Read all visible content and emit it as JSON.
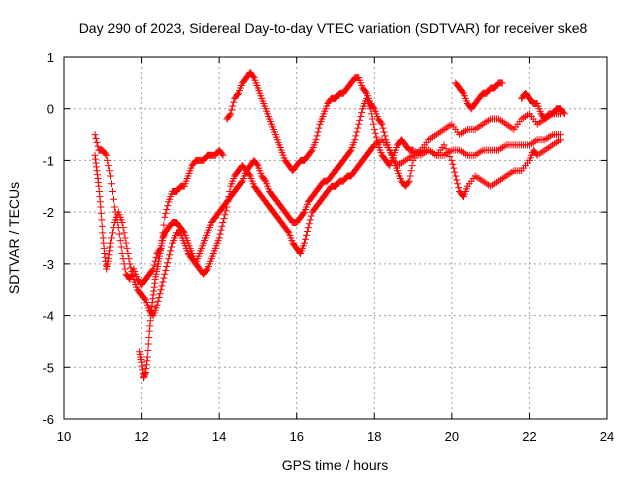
{
  "chart_data": {
    "type": "scatter",
    "title": "Day 290 of 2023, Sidereal Day-to-day VTEC variation (SDTVAR) for receiver ske8",
    "xlabel": "GPS time / hours",
    "ylabel": "SDTVAR / TECUs",
    "xlim": [
      10,
      24
    ],
    "ylim": [
      -6,
      1
    ],
    "xticks": [
      "10",
      "12",
      "14",
      "16",
      "18",
      "20",
      "22",
      "24"
    ],
    "yticks": [
      "1",
      "0",
      "-1",
      "-2",
      "-3",
      "-4",
      "-5",
      "-6"
    ],
    "grid": true,
    "marker": "plus",
    "color": "#ff0000",
    "series": [
      {
        "x": [
          10.8,
          10.9,
          11.0,
          11.1,
          11.2,
          11.3,
          11.4,
          11.5,
          11.6,
          11.7,
          11.8,
          11.9,
          12.0,
          12.1,
          12.2,
          12.3,
          12.4,
          12.5,
          12.6,
          12.7,
          12.8,
          12.9,
          13.0,
          13.1,
          13.2,
          13.3,
          13.4,
          13.5,
          13.6,
          13.7,
          13.8,
          13.9,
          14.0,
          14.1
        ],
        "y": [
          -0.5,
          -0.8,
          -0.8,
          -0.9,
          -1.3,
          -1.9,
          -2.3,
          -2.8,
          -3.2,
          -3.3,
          -3.1,
          -3.3,
          -3.4,
          -3.3,
          -3.2,
          -3.1,
          -2.8,
          -2.7,
          -2.1,
          -1.8,
          -1.6,
          -1.6,
          -1.5,
          -1.5,
          -1.3,
          -1.1,
          -1.0,
          -1.0,
          -1.0,
          -0.9,
          -0.9,
          -0.9,
          -0.8,
          -0.9
        ]
      },
      {
        "x": [
          10.8,
          10.85,
          10.9,
          10.95,
          11.0,
          11.05,
          11.1,
          11.15,
          11.2,
          11.3,
          11.4,
          11.5,
          11.6,
          11.7,
          11.8,
          11.9,
          12.0,
          12.1,
          12.2,
          12.3,
          12.4,
          12.5,
          12.6,
          12.7,
          12.8,
          12.9,
          13.0,
          13.1,
          13.2,
          13.3,
          13.4,
          13.5,
          13.6,
          13.7,
          13.8,
          13.9,
          14.0,
          14.1,
          14.2,
          14.3,
          14.4,
          14.5,
          14.6,
          14.7,
          14.8,
          14.9,
          15.0,
          15.1,
          15.2,
          15.3,
          15.4,
          15.5,
          15.6,
          15.7,
          15.8,
          15.9,
          16.0,
          16.1,
          16.2,
          16.3,
          16.4,
          16.5,
          16.6,
          16.7,
          16.8,
          16.9,
          17.0,
          17.1,
          17.2,
          17.3,
          17.4,
          17.5,
          17.6,
          17.7,
          17.8,
          17.9,
          18.0,
          18.1,
          18.2,
          18.3,
          18.4,
          18.5,
          18.6,
          18.7,
          18.8,
          18.9,
          19.0,
          19.2,
          19.4,
          19.6,
          19.8,
          20.0,
          20.2,
          20.4,
          20.6,
          20.8,
          21.0,
          21.2,
          21.4,
          21.6,
          21.8,
          22.0,
          22.2,
          22.4,
          22.6,
          22.8
        ],
        "y": [
          -0.9,
          -1.2,
          -1.5,
          -1.9,
          -2.4,
          -2.8,
          -3.1,
          -2.9,
          -2.6,
          -2.2,
          -2.0,
          -2.2,
          -2.6,
          -3.0,
          -3.3,
          -3.5,
          -3.6,
          -3.7,
          -3.9,
          -4.0,
          -3.8,
          -3.5,
          -3.2,
          -2.9,
          -2.6,
          -2.4,
          -2.4,
          -2.6,
          -2.8,
          -2.9,
          -3.0,
          -2.8,
          -2.6,
          -2.4,
          -2.2,
          -2.1,
          -2.0,
          -1.9,
          -1.8,
          -1.7,
          -1.6,
          -1.5,
          -1.4,
          -1.2,
          -1.1,
          -1.0,
          -1.1,
          -1.3,
          -1.4,
          -1.6,
          -1.7,
          -1.8,
          -1.9,
          -2.0,
          -2.1,
          -2.2,
          -2.2,
          -2.1,
          -2.0,
          -1.8,
          -1.7,
          -1.6,
          -1.5,
          -1.4,
          -1.4,
          -1.3,
          -1.2,
          -1.1,
          -1.0,
          -0.9,
          -0.8,
          -0.6,
          -0.3,
          0.0,
          0.2,
          0.0,
          -0.4,
          -0.7,
          -0.9,
          -1.0,
          -1.1,
          -0.9,
          -0.7,
          -0.6,
          -0.7,
          -0.8,
          -0.8,
          -0.9,
          -0.8,
          -0.9,
          -0.9,
          -0.8,
          -0.8,
          -0.9,
          -0.9,
          -0.8,
          -0.8,
          -0.8,
          -0.7,
          -0.7,
          -0.7,
          -0.7,
          -0.6,
          -0.6,
          -0.5,
          -0.5
        ]
      },
      {
        "x": [
          11.95,
          12.0,
          12.05,
          12.1,
          12.15,
          12.2,
          12.25,
          12.3,
          12.35,
          12.4,
          12.45,
          12.5,
          12.55,
          12.6,
          12.7,
          12.8,
          12.9,
          13.0,
          13.1,
          13.2,
          13.3,
          13.4,
          13.5,
          13.6,
          13.7,
          13.8,
          13.9,
          14.0,
          14.1,
          14.2,
          14.3,
          14.4,
          14.5,
          14.6,
          14.7,
          14.8,
          14.9,
          15.0,
          15.1,
          15.2,
          15.3,
          15.4,
          15.5,
          15.6,
          15.7,
          15.8,
          15.9,
          16.0,
          16.1,
          16.2,
          16.3,
          16.4,
          16.5,
          16.6,
          16.7,
          16.8,
          16.9,
          17.0,
          17.1,
          17.2,
          17.3,
          17.4,
          17.5,
          17.6,
          17.7,
          17.8,
          17.9,
          18.0,
          18.2,
          18.4,
          18.6,
          18.8,
          19.0,
          19.2,
          19.4,
          19.6,
          19.8,
          20.0,
          20.2,
          20.4,
          20.6,
          20.8,
          21.0,
          21.2,
          21.4,
          21.6,
          21.8,
          22.0,
          22.2,
          22.4,
          22.6,
          22.8
        ],
        "y": [
          -4.7,
          -4.9,
          -5.2,
          -5.1,
          -4.8,
          -4.3,
          -3.9,
          -3.6,
          -3.3,
          -3.1,
          -2.9,
          -2.7,
          -2.5,
          -2.4,
          -2.3,
          -2.2,
          -2.2,
          -2.3,
          -2.4,
          -2.6,
          -2.8,
          -3.0,
          -3.1,
          -3.2,
          -3.1,
          -2.9,
          -2.7,
          -2.5,
          -2.2,
          -1.9,
          -1.5,
          -1.3,
          -1.2,
          -1.1,
          -1.2,
          -1.3,
          -1.5,
          -1.6,
          -1.7,
          -1.8,
          -1.9,
          -2.0,
          -2.1,
          -2.2,
          -2.3,
          -2.4,
          -2.6,
          -2.7,
          -2.8,
          -2.6,
          -2.3,
          -2.0,
          -1.9,
          -1.8,
          -1.7,
          -1.6,
          -1.5,
          -1.5,
          -1.4,
          -1.4,
          -1.3,
          -1.3,
          -1.2,
          -1.1,
          -1.0,
          -0.9,
          -0.8,
          -0.7,
          -0.6,
          -0.8,
          -1.1,
          -1.0,
          -0.9,
          -0.8,
          -0.6,
          -0.5,
          -0.4,
          -0.3,
          -0.5,
          -0.4,
          -0.4,
          -0.3,
          -0.2,
          -0.2,
          -0.3,
          -0.4,
          -0.2,
          -0.1,
          -0.3,
          -0.2,
          -0.1,
          -0.1
        ]
      },
      {
        "x": [
          14.2,
          14.3,
          14.4,
          14.5,
          14.6,
          14.7,
          14.8,
          14.9,
          15.0,
          15.1,
          15.2,
          15.3,
          15.4,
          15.5,
          15.6,
          15.7,
          15.8,
          15.9,
          16.0,
          16.1,
          16.2,
          16.3,
          16.4,
          16.5,
          16.6,
          16.7,
          16.8,
          16.9,
          17.0,
          17.1,
          17.2,
          17.3,
          17.4,
          17.5,
          17.6,
          17.7,
          17.8,
          17.9,
          18.0,
          18.1,
          18.2,
          18.3,
          18.4,
          18.5,
          18.6,
          18.7,
          18.8,
          18.9,
          19.0,
          19.2,
          19.4,
          19.6,
          19.8,
          20.0,
          20.1,
          20.2,
          20.3,
          20.4,
          20.6,
          20.8,
          21.0,
          21.2,
          21.4,
          21.6,
          21.8,
          22.0,
          22.1,
          22.2,
          22.4,
          22.6,
          22.8
        ],
        "y": [
          -0.2,
          -0.1,
          0.2,
          0.3,
          0.5,
          0.6,
          0.7,
          0.6,
          0.4,
          0.2,
          0.0,
          -0.2,
          -0.4,
          -0.6,
          -0.8,
          -1.0,
          -1.1,
          -1.2,
          -1.1,
          -1.0,
          -1.0,
          -0.9,
          -0.8,
          -0.6,
          -0.3,
          -0.1,
          0.1,
          0.2,
          0.2,
          0.3,
          0.3,
          0.4,
          0.5,
          0.6,
          0.6,
          0.4,
          0.3,
          0.1,
          0.0,
          -0.2,
          -0.3,
          -0.6,
          -0.8,
          -1.0,
          -1.2,
          -1.4,
          -1.5,
          -1.4,
          -1.0,
          -0.8,
          -0.8,
          -0.9,
          -0.7,
          -1.0,
          -1.3,
          -1.6,
          -1.7,
          -1.5,
          -1.3,
          -1.4,
          -1.5,
          -1.4,
          -1.3,
          -1.2,
          -1.2,
          -1.0,
          -0.8,
          -0.9,
          -0.8,
          -0.7,
          -0.6
        ]
      },
      {
        "x": [
          20.1,
          20.2,
          20.3,
          20.4,
          20.5,
          20.6,
          20.7,
          20.8,
          20.9,
          21.0,
          21.1,
          21.2,
          21.3
        ],
        "y": [
          0.5,
          0.4,
          0.3,
          0.1,
          0.0,
          0.1,
          0.2,
          0.3,
          0.3,
          0.4,
          0.4,
          0.5,
          0.5
        ]
      },
      {
        "x": [
          21.8,
          21.9,
          22.0,
          22.1,
          22.2,
          22.3,
          22.4,
          22.5,
          22.6,
          22.7,
          22.8,
          22.9
        ],
        "y": [
          0.2,
          0.3,
          0.2,
          0.1,
          0.1,
          -0.1,
          -0.2,
          -0.1,
          -0.1,
          0.0,
          0.0,
          -0.1
        ]
      }
    ]
  }
}
